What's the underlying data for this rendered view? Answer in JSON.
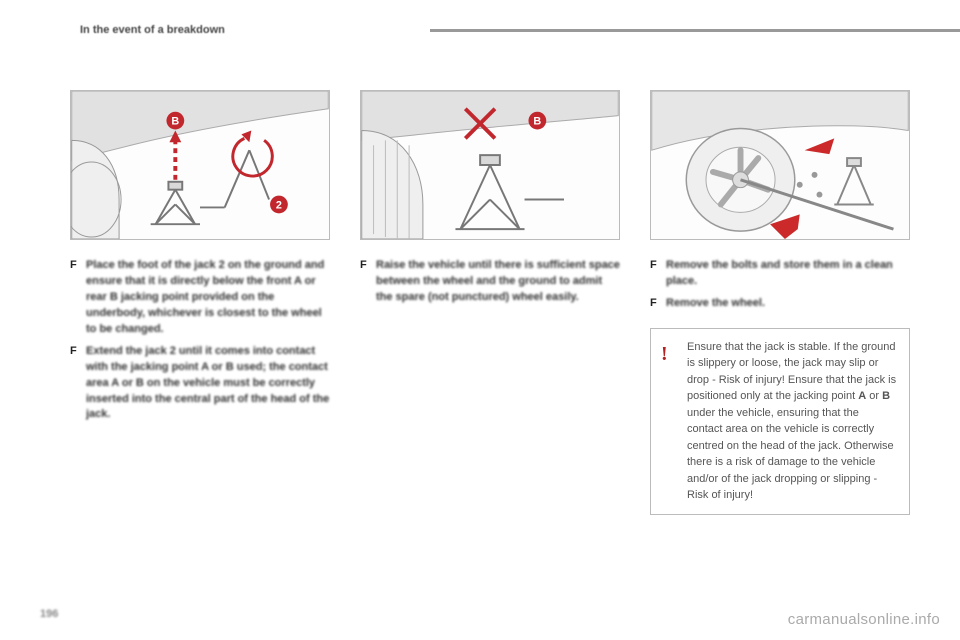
{
  "header": {
    "title": "In the event of a breakdown"
  },
  "colors": {
    "accent_red": "#c1272d",
    "arrow_red": "#cc2a2a",
    "body_gray": "#d9d9d9",
    "line_gray": "#777777",
    "illus_border": "#bbbbbb",
    "text_dark": "#333333",
    "text_muted": "#555555"
  },
  "panels": [
    {
      "id": "panel-1",
      "illustration": {
        "type": "svg-diagram",
        "description": "scissor jack under car body at point B with wrench 2"
      },
      "bullets": [
        "Place the foot of the jack 2 on the ground and ensure that it is directly below the front A or rear B jacking point provided on the underbody, whichever is closest to the wheel to be changed.",
        "Extend the jack 2 until it comes into contact with the jacking point A or B used; the contact area A or B on the vehicle must be correctly inserted into the central part of the head of the jack."
      ]
    },
    {
      "id": "panel-2",
      "illustration": {
        "type": "svg-diagram",
        "description": "incorrect jack placement crossed out"
      },
      "bullets": [
        "Raise the vehicle until there is sufficient space between the wheel and the ground to admit the spare (not punctured) wheel easily."
      ]
    },
    {
      "id": "panel-3",
      "illustration": {
        "type": "svg-diagram",
        "description": "removing wheel with wrench, arrows"
      },
      "bullets": [
        "Remove the bolts and store them in a clean place.",
        "Remove the wheel."
      ]
    }
  ],
  "warning": {
    "text": "Ensure that the jack is stable. If the ground is slippery or loose, the jack may slip or drop - Risk of injury! Ensure that the jack is positioned only at the jacking point A or B under the vehicle, ensuring that the contact area on the vehicle is correctly centred on the head of the jack. Otherwise there is a risk of damage to the vehicle and/or of the jack dropping or slipping - Risk of injury!",
    "bold_tokens": [
      "A",
      "B"
    ]
  },
  "page_number": "196",
  "watermark": "carmanualsonline.info"
}
